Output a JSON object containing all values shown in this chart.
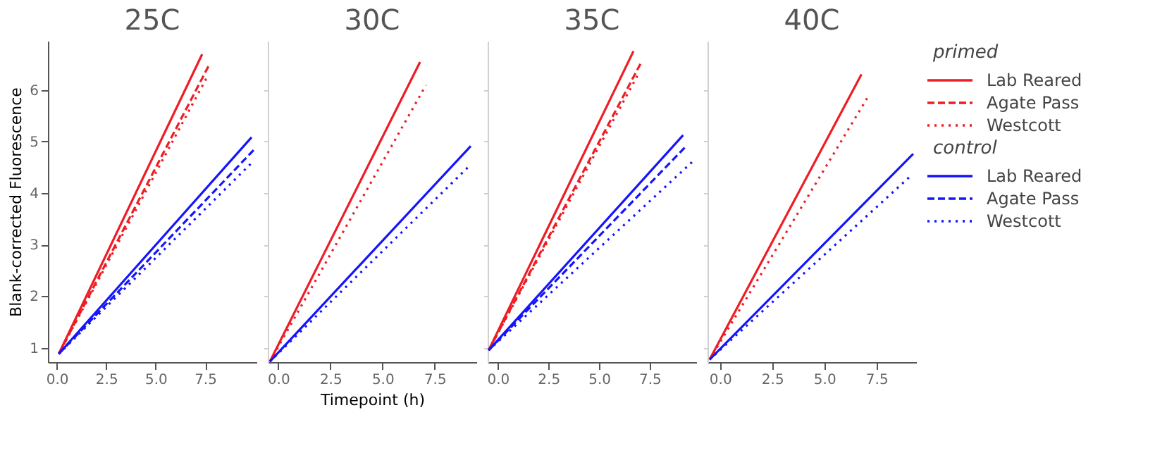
{
  "chart_data": [
    {
      "type": "line",
      "title": "25C",
      "ylabel": "Blank-corrected Fluorescence",
      "xlim": [
        -0.45,
        10.1
      ],
      "ylim": [
        0.72,
        6.95
      ],
      "xticks": [
        {
          "value": 0,
          "label": "0.0"
        },
        {
          "value": 2.5,
          "label": "2.5"
        },
        {
          "value": 5,
          "label": "5.0"
        },
        {
          "value": 7.5,
          "label": "7.5"
        }
      ],
      "yticks": [
        1,
        2,
        3,
        4,
        5,
        6
      ],
      "legend": "right",
      "annotations": [
        "primed",
        "control"
      ],
      "series": [
        {
          "name": "Lab Reared",
          "color": "#ee1c25",
          "line_style": "solid",
          "x": [
            0.1,
            7.35
          ],
          "values": [
            0.88,
            6.69
          ]
        },
        {
          "name": "Agate Pass",
          "color": "#ee1c25",
          "line_style": "dashed",
          "x": [
            0.1,
            7.7
          ],
          "values": [
            0.88,
            6.48
          ]
        },
        {
          "name": "Westcott",
          "color": "#ee1c25",
          "line_style": "dotted",
          "x": [
            0.1,
            7.6
          ],
          "values": [
            0.88,
            6.25
          ]
        },
        {
          "name": "Lab Reared",
          "color": "#1414ff",
          "line_style": "solid",
          "x": [
            0.1,
            9.85
          ],
          "values": [
            0.88,
            5.08
          ]
        },
        {
          "name": "Agate Pass",
          "color": "#1414ff",
          "line_style": "dashed",
          "x": [
            0.1,
            10.0
          ],
          "values": [
            0.88,
            4.85
          ]
        },
        {
          "name": "Westcott",
          "color": "#1414ff",
          "line_style": "dotted",
          "x": [
            0.1,
            9.9
          ],
          "values": [
            0.88,
            4.6
          ]
        }
      ]
    },
    {
      "type": "line",
      "title": "30C",
      "xlabel": "Timepoint (h)",
      "tick_labels": "x",
      "xlim": [
        -0.5,
        9.5
      ],
      "ylim": [
        0.72,
        6.95
      ],
      "yticks": [
        1,
        2,
        3,
        4,
        5,
        6
      ],
      "xticks": [
        {
          "value": 0,
          "label": "0.0"
        },
        {
          "value": 2.5,
          "label": "2.5"
        },
        {
          "value": 5,
          "label": "5.0"
        },
        {
          "value": 7.5,
          "label": "7.5"
        }
      ],
      "series": [
        {
          "color": "#ee1c25",
          "line_style": "solid",
          "x": [
            -0.4,
            6.8
          ],
          "values": [
            0.73,
            6.54
          ]
        },
        {
          "color": "#ee1c25",
          "line_style": "dotted",
          "x": [
            -0.4,
            7.08
          ],
          "values": [
            0.73,
            6.09
          ]
        },
        {
          "color": "#1414ff",
          "line_style": "solid",
          "x": [
            -0.4,
            9.23
          ],
          "values": [
            0.73,
            4.91
          ]
        },
        {
          "color": "#1414ff",
          "line_style": "dotted",
          "x": [
            -0.4,
            9.15
          ],
          "values": [
            0.73,
            4.52
          ]
        }
      ]
    },
    {
      "type": "line",
      "title": "35C",
      "tick_labels": "x",
      "xlim": [
        -0.5,
        9.8
      ],
      "ylim": [
        0.72,
        6.95
      ],
      "yticks": [
        1,
        2,
        3,
        4,
        5,
        6
      ],
      "xticks": [
        {
          "value": 0,
          "label": "0.0"
        },
        {
          "value": 2.5,
          "label": "2.5"
        },
        {
          "value": 5,
          "label": "5.0"
        },
        {
          "value": 7.5,
          "label": "7.5"
        }
      ],
      "series": [
        {
          "color": "#ee1c25",
          "line_style": "solid",
          "x": [
            -0.45,
            6.7
          ],
          "values": [
            0.95,
            6.75
          ]
        },
        {
          "color": "#ee1c25",
          "line_style": "dashed",
          "x": [
            -0.45,
            7.08
          ],
          "values": [
            0.95,
            6.53
          ]
        },
        {
          "color": "#ee1c25",
          "line_style": "dotted",
          "x": [
            -0.45,
            7.0
          ],
          "values": [
            0.95,
            6.35
          ]
        },
        {
          "color": "#1414ff",
          "line_style": "solid",
          "x": [
            -0.45,
            9.15
          ],
          "values": [
            0.95,
            5.12
          ]
        },
        {
          "color": "#1414ff",
          "line_style": "dashed",
          "x": [
            -0.45,
            9.23
          ],
          "values": [
            0.95,
            4.88
          ]
        },
        {
          "color": "#1414ff",
          "line_style": "dotted",
          "x": [
            -0.45,
            9.65
          ],
          "values": [
            0.95,
            4.62
          ]
        }
      ]
    },
    {
      "type": "line",
      "title": "40C",
      "tick_labels": "x",
      "xlim": [
        -0.6,
        9.4
      ],
      "ylim": [
        0.72,
        6.95
      ],
      "yticks": [
        1,
        2,
        3,
        4,
        5,
        6
      ],
      "xticks": [
        {
          "value": 0,
          "label": "0.0"
        },
        {
          "value": 2.5,
          "label": "2.5"
        },
        {
          "value": 5,
          "label": "5.0"
        },
        {
          "value": 7.5,
          "label": "7.5"
        }
      ],
      "series": [
        {
          "color": "#ee1c25",
          "line_style": "solid",
          "x": [
            -0.5,
            6.78
          ],
          "values": [
            0.77,
            6.3
          ]
        },
        {
          "color": "#ee1c25",
          "line_style": "dotted",
          "x": [
            -0.5,
            7.07
          ],
          "values": [
            0.77,
            5.85
          ]
        },
        {
          "color": "#1414ff",
          "line_style": "solid",
          "x": [
            -0.5,
            9.26
          ],
          "values": [
            0.77,
            4.76
          ]
        },
        {
          "color": "#1414ff",
          "line_style": "dotted",
          "x": [
            -0.5,
            9.19
          ],
          "values": [
            0.77,
            4.35
          ]
        }
      ]
    }
  ]
}
